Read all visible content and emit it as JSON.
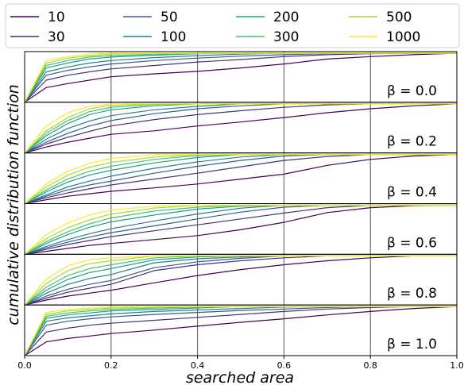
{
  "chart_data": {
    "type": "line",
    "xlabel": "searched area",
    "ylabel": "cumulative distribution function",
    "xlim": [
      0.0,
      1.0
    ],
    "xticks": [
      "0.0",
      "0.2",
      "0.4",
      "0.6",
      "0.8",
      "1.0"
    ],
    "grid": "vertical lines at x ticks",
    "legend_position": "top, 4 columns",
    "series_names": [
      "10",
      "30",
      "50",
      "100",
      "200",
      "300",
      "500",
      "1000"
    ],
    "series_colors": [
      "#440154",
      "#46327e",
      "#365c8d",
      "#277f8e",
      "#1fa187",
      "#4ac16d",
      "#a0da39",
      "#fde725"
    ],
    "panels": [
      {
        "label": "β = 0.0",
        "note": "approximate CDF values (0–1) sampled at x = 0, 0.05, 0.10, 0.15, 0.20, 0.30, 0.40, 0.50, 0.60, 0.70, 0.80, 0.90, 1.00",
        "series": [
          {
            "name": "10",
            "values": [
              0.0,
              0.3,
              0.38,
              0.45,
              0.52,
              0.58,
              0.63,
              0.7,
              0.78,
              0.88,
              0.93,
              0.97,
              1.0
            ]
          },
          {
            "name": "30",
            "values": [
              0.0,
              0.45,
              0.55,
              0.62,
              0.68,
              0.75,
              0.82,
              0.87,
              0.93,
              0.97,
              0.99,
              1.0,
              1.0
            ]
          },
          {
            "name": "50",
            "values": [
              0.0,
              0.55,
              0.65,
              0.72,
              0.78,
              0.85,
              0.9,
              0.94,
              0.97,
              0.99,
              1.0,
              1.0,
              1.0
            ]
          },
          {
            "name": "100",
            "values": [
              0.0,
              0.62,
              0.72,
              0.8,
              0.85,
              0.91,
              0.95,
              0.98,
              1.0,
              1.0,
              1.0,
              1.0,
              1.0
            ]
          },
          {
            "name": "200",
            "values": [
              0.0,
              0.7,
              0.8,
              0.88,
              0.92,
              0.96,
              0.99,
              1.0,
              1.0,
              1.0,
              1.0,
              1.0,
              1.0
            ]
          },
          {
            "name": "300",
            "values": [
              0.0,
              0.75,
              0.85,
              0.92,
              0.95,
              0.98,
              1.0,
              1.0,
              1.0,
              1.0,
              1.0,
              1.0,
              1.0
            ]
          },
          {
            "name": "500",
            "values": [
              0.0,
              0.8,
              0.9,
              0.95,
              0.98,
              1.0,
              1.0,
              1.0,
              1.0,
              1.0,
              1.0,
              1.0,
              1.0
            ]
          },
          {
            "name": "1000",
            "values": [
              0.0,
              0.85,
              0.93,
              0.98,
              1.0,
              1.0,
              1.0,
              1.0,
              1.0,
              1.0,
              1.0,
              1.0,
              1.0
            ]
          }
        ]
      },
      {
        "label": "β = 0.2",
        "series": [
          {
            "name": "10",
            "values": [
              0.0,
              0.12,
              0.22,
              0.3,
              0.38,
              0.45,
              0.55,
              0.63,
              0.72,
              0.82,
              0.9,
              0.96,
              1.0
            ]
          },
          {
            "name": "30",
            "values": [
              0.0,
              0.18,
              0.32,
              0.44,
              0.55,
              0.68,
              0.78,
              0.86,
              0.93,
              0.98,
              1.0,
              1.0,
              1.0
            ]
          },
          {
            "name": "50",
            "values": [
              0.0,
              0.22,
              0.4,
              0.55,
              0.66,
              0.8,
              0.9,
              0.96,
              1.0,
              1.0,
              1.0,
              1.0,
              1.0
            ]
          },
          {
            "name": "100",
            "values": [
              0.0,
              0.28,
              0.5,
              0.65,
              0.76,
              0.88,
              0.95,
              1.0,
              1.0,
              1.0,
              1.0,
              1.0,
              1.0
            ]
          },
          {
            "name": "200",
            "values": [
              0.0,
              0.35,
              0.6,
              0.78,
              0.88,
              0.96,
              1.0,
              1.0,
              1.0,
              1.0,
              1.0,
              1.0,
              1.0
            ]
          },
          {
            "name": "300",
            "values": [
              0.0,
              0.4,
              0.66,
              0.84,
              0.93,
              0.99,
              1.0,
              1.0,
              1.0,
              1.0,
              1.0,
              1.0,
              1.0
            ]
          },
          {
            "name": "500",
            "values": [
              0.0,
              0.45,
              0.72,
              0.9,
              0.97,
              1.0,
              1.0,
              1.0,
              1.0,
              1.0,
              1.0,
              1.0,
              1.0
            ]
          },
          {
            "name": "1000",
            "values": [
              0.0,
              0.55,
              0.82,
              0.95,
              1.0,
              1.0,
              1.0,
              1.0,
              1.0,
              1.0,
              1.0,
              1.0,
              1.0
            ]
          }
        ]
      },
      {
        "label": "β = 0.4",
        "series": [
          {
            "name": "10",
            "values": [
              0.0,
              0.08,
              0.15,
              0.2,
              0.25,
              0.32,
              0.4,
              0.5,
              0.6,
              0.78,
              0.9,
              0.97,
              1.0
            ]
          },
          {
            "name": "30",
            "values": [
              0.0,
              0.12,
              0.22,
              0.3,
              0.38,
              0.5,
              0.62,
              0.75,
              0.88,
              0.96,
              1.0,
              1.0,
              1.0
            ]
          },
          {
            "name": "50",
            "values": [
              0.0,
              0.15,
              0.28,
              0.38,
              0.46,
              0.62,
              0.76,
              0.88,
              0.97,
              1.0,
              1.0,
              1.0,
              1.0
            ]
          },
          {
            "name": "100",
            "values": [
              0.0,
              0.18,
              0.34,
              0.46,
              0.56,
              0.72,
              0.85,
              0.95,
              1.0,
              1.0,
              1.0,
              1.0,
              1.0
            ]
          },
          {
            "name": "200",
            "values": [
              0.0,
              0.24,
              0.44,
              0.58,
              0.68,
              0.83,
              0.94,
              1.0,
              1.0,
              1.0,
              1.0,
              1.0,
              1.0
            ]
          },
          {
            "name": "300",
            "values": [
              0.0,
              0.28,
              0.5,
              0.66,
              0.76,
              0.9,
              0.98,
              1.0,
              1.0,
              1.0,
              1.0,
              1.0,
              1.0
            ]
          },
          {
            "name": "500",
            "values": [
              0.0,
              0.34,
              0.58,
              0.74,
              0.84,
              0.95,
              1.0,
              1.0,
              1.0,
              1.0,
              1.0,
              1.0,
              1.0
            ]
          },
          {
            "name": "1000",
            "values": [
              0.0,
              0.4,
              0.66,
              0.82,
              0.92,
              1.0,
              1.0,
              1.0,
              1.0,
              1.0,
              1.0,
              1.0,
              1.0
            ]
          }
        ]
      },
      {
        "label": "β = 0.6",
        "series": [
          {
            "name": "10",
            "values": [
              0.0,
              0.06,
              0.12,
              0.18,
              0.22,
              0.3,
              0.38,
              0.5,
              0.65,
              0.85,
              0.95,
              0.99,
              1.0
            ]
          },
          {
            "name": "30",
            "values": [
              0.0,
              0.1,
              0.2,
              0.28,
              0.36,
              0.48,
              0.6,
              0.72,
              0.84,
              0.95,
              1.0,
              1.0,
              1.0
            ]
          },
          {
            "name": "50",
            "values": [
              0.0,
              0.13,
              0.25,
              0.35,
              0.44,
              0.58,
              0.72,
              0.86,
              0.96,
              1.0,
              1.0,
              1.0,
              1.0
            ]
          },
          {
            "name": "100",
            "values": [
              0.0,
              0.16,
              0.3,
              0.42,
              0.52,
              0.68,
              0.82,
              0.94,
              1.0,
              1.0,
              1.0,
              1.0,
              1.0
            ]
          },
          {
            "name": "200",
            "values": [
              0.0,
              0.22,
              0.4,
              0.55,
              0.66,
              0.8,
              0.92,
              0.98,
              1.0,
              1.0,
              1.0,
              1.0,
              1.0
            ]
          },
          {
            "name": "300",
            "values": [
              0.0,
              0.26,
              0.46,
              0.62,
              0.74,
              0.88,
              0.96,
              1.0,
              1.0,
              1.0,
              1.0,
              1.0,
              1.0
            ]
          },
          {
            "name": "500",
            "values": [
              0.0,
              0.32,
              0.54,
              0.7,
              0.82,
              0.94,
              1.0,
              1.0,
              1.0,
              1.0,
              1.0,
              1.0,
              1.0
            ]
          },
          {
            "name": "1000",
            "values": [
              0.0,
              0.4,
              0.64,
              0.8,
              0.9,
              0.98,
              1.0,
              1.0,
              1.0,
              1.0,
              1.0,
              1.0,
              1.0
            ]
          }
        ]
      },
      {
        "label": "β = 0.8",
        "series": [
          {
            "name": "10",
            "values": [
              0.0,
              0.1,
              0.18,
              0.24,
              0.3,
              0.45,
              0.6,
              0.72,
              0.82,
              0.9,
              0.96,
              1.0,
              1.0
            ]
          },
          {
            "name": "30",
            "values": [
              0.0,
              0.14,
              0.26,
              0.34,
              0.42,
              0.7,
              0.82,
              0.9,
              0.96,
              1.0,
              1.0,
              1.0,
              1.0
            ]
          },
          {
            "name": "50",
            "values": [
              0.0,
              0.18,
              0.32,
              0.42,
              0.5,
              0.76,
              0.88,
              0.95,
              1.0,
              1.0,
              1.0,
              1.0,
              1.0
            ]
          },
          {
            "name": "100",
            "values": [
              0.0,
              0.24,
              0.42,
              0.54,
              0.62,
              0.86,
              0.94,
              0.98,
              1.0,
              1.0,
              1.0,
              1.0,
              1.0
            ]
          },
          {
            "name": "200",
            "values": [
              0.0,
              0.3,
              0.52,
              0.66,
              0.74,
              0.92,
              0.98,
              1.0,
              1.0,
              1.0,
              1.0,
              1.0,
              1.0
            ]
          },
          {
            "name": "300",
            "values": [
              0.0,
              0.36,
              0.6,
              0.74,
              0.82,
              0.96,
              1.0,
              1.0,
              1.0,
              1.0,
              1.0,
              1.0,
              1.0
            ]
          },
          {
            "name": "500",
            "values": [
              0.0,
              0.44,
              0.7,
              0.84,
              0.9,
              1.0,
              1.0,
              1.0,
              1.0,
              1.0,
              1.0,
              1.0,
              1.0
            ]
          },
          {
            "name": "1000",
            "values": [
              0.0,
              0.52,
              0.8,
              0.92,
              0.96,
              1.0,
              1.0,
              1.0,
              1.0,
              1.0,
              1.0,
              1.0,
              1.0
            ]
          }
        ]
      },
      {
        "label": "β = 1.0",
        "series": [
          {
            "name": "10",
            "values": [
              0.0,
              0.28,
              0.35,
              0.4,
              0.45,
              0.52,
              0.6,
              0.68,
              0.75,
              0.83,
              0.9,
              0.96,
              1.0
            ]
          },
          {
            "name": "30",
            "values": [
              0.0,
              0.48,
              0.56,
              0.62,
              0.66,
              0.72,
              0.78,
              0.84,
              0.9,
              0.95,
              0.98,
              1.0,
              1.0
            ]
          },
          {
            "name": "50",
            "values": [
              0.0,
              0.62,
              0.7,
              0.75,
              0.79,
              0.84,
              0.88,
              0.92,
              0.95,
              0.98,
              1.0,
              1.0,
              1.0
            ]
          },
          {
            "name": "100",
            "values": [
              0.0,
              0.7,
              0.77,
              0.81,
              0.85,
              0.9,
              0.93,
              0.96,
              0.99,
              1.0,
              1.0,
              1.0,
              1.0
            ]
          },
          {
            "name": "200",
            "values": [
              0.0,
              0.76,
              0.83,
              0.87,
              0.91,
              0.94,
              0.97,
              1.0,
              1.0,
              1.0,
              1.0,
              1.0,
              1.0
            ]
          },
          {
            "name": "300",
            "values": [
              0.0,
              0.8,
              0.87,
              0.91,
              0.94,
              0.97,
              0.99,
              1.0,
              1.0,
              1.0,
              1.0,
              1.0,
              1.0
            ]
          },
          {
            "name": "500",
            "values": [
              0.0,
              0.84,
              0.91,
              0.94,
              0.97,
              0.99,
              1.0,
              1.0,
              1.0,
              1.0,
              1.0,
              1.0,
              1.0
            ]
          },
          {
            "name": "1000",
            "values": [
              0.0,
              0.88,
              0.94,
              0.97,
              0.99,
              1.0,
              1.0,
              1.0,
              1.0,
              1.0,
              1.0,
              1.0,
              1.0
            ]
          }
        ]
      }
    ],
    "x": [
      0.0,
      0.05,
      0.1,
      0.15,
      0.2,
      0.3,
      0.4,
      0.5,
      0.6,
      0.7,
      0.8,
      0.9,
      1.0
    ]
  }
}
